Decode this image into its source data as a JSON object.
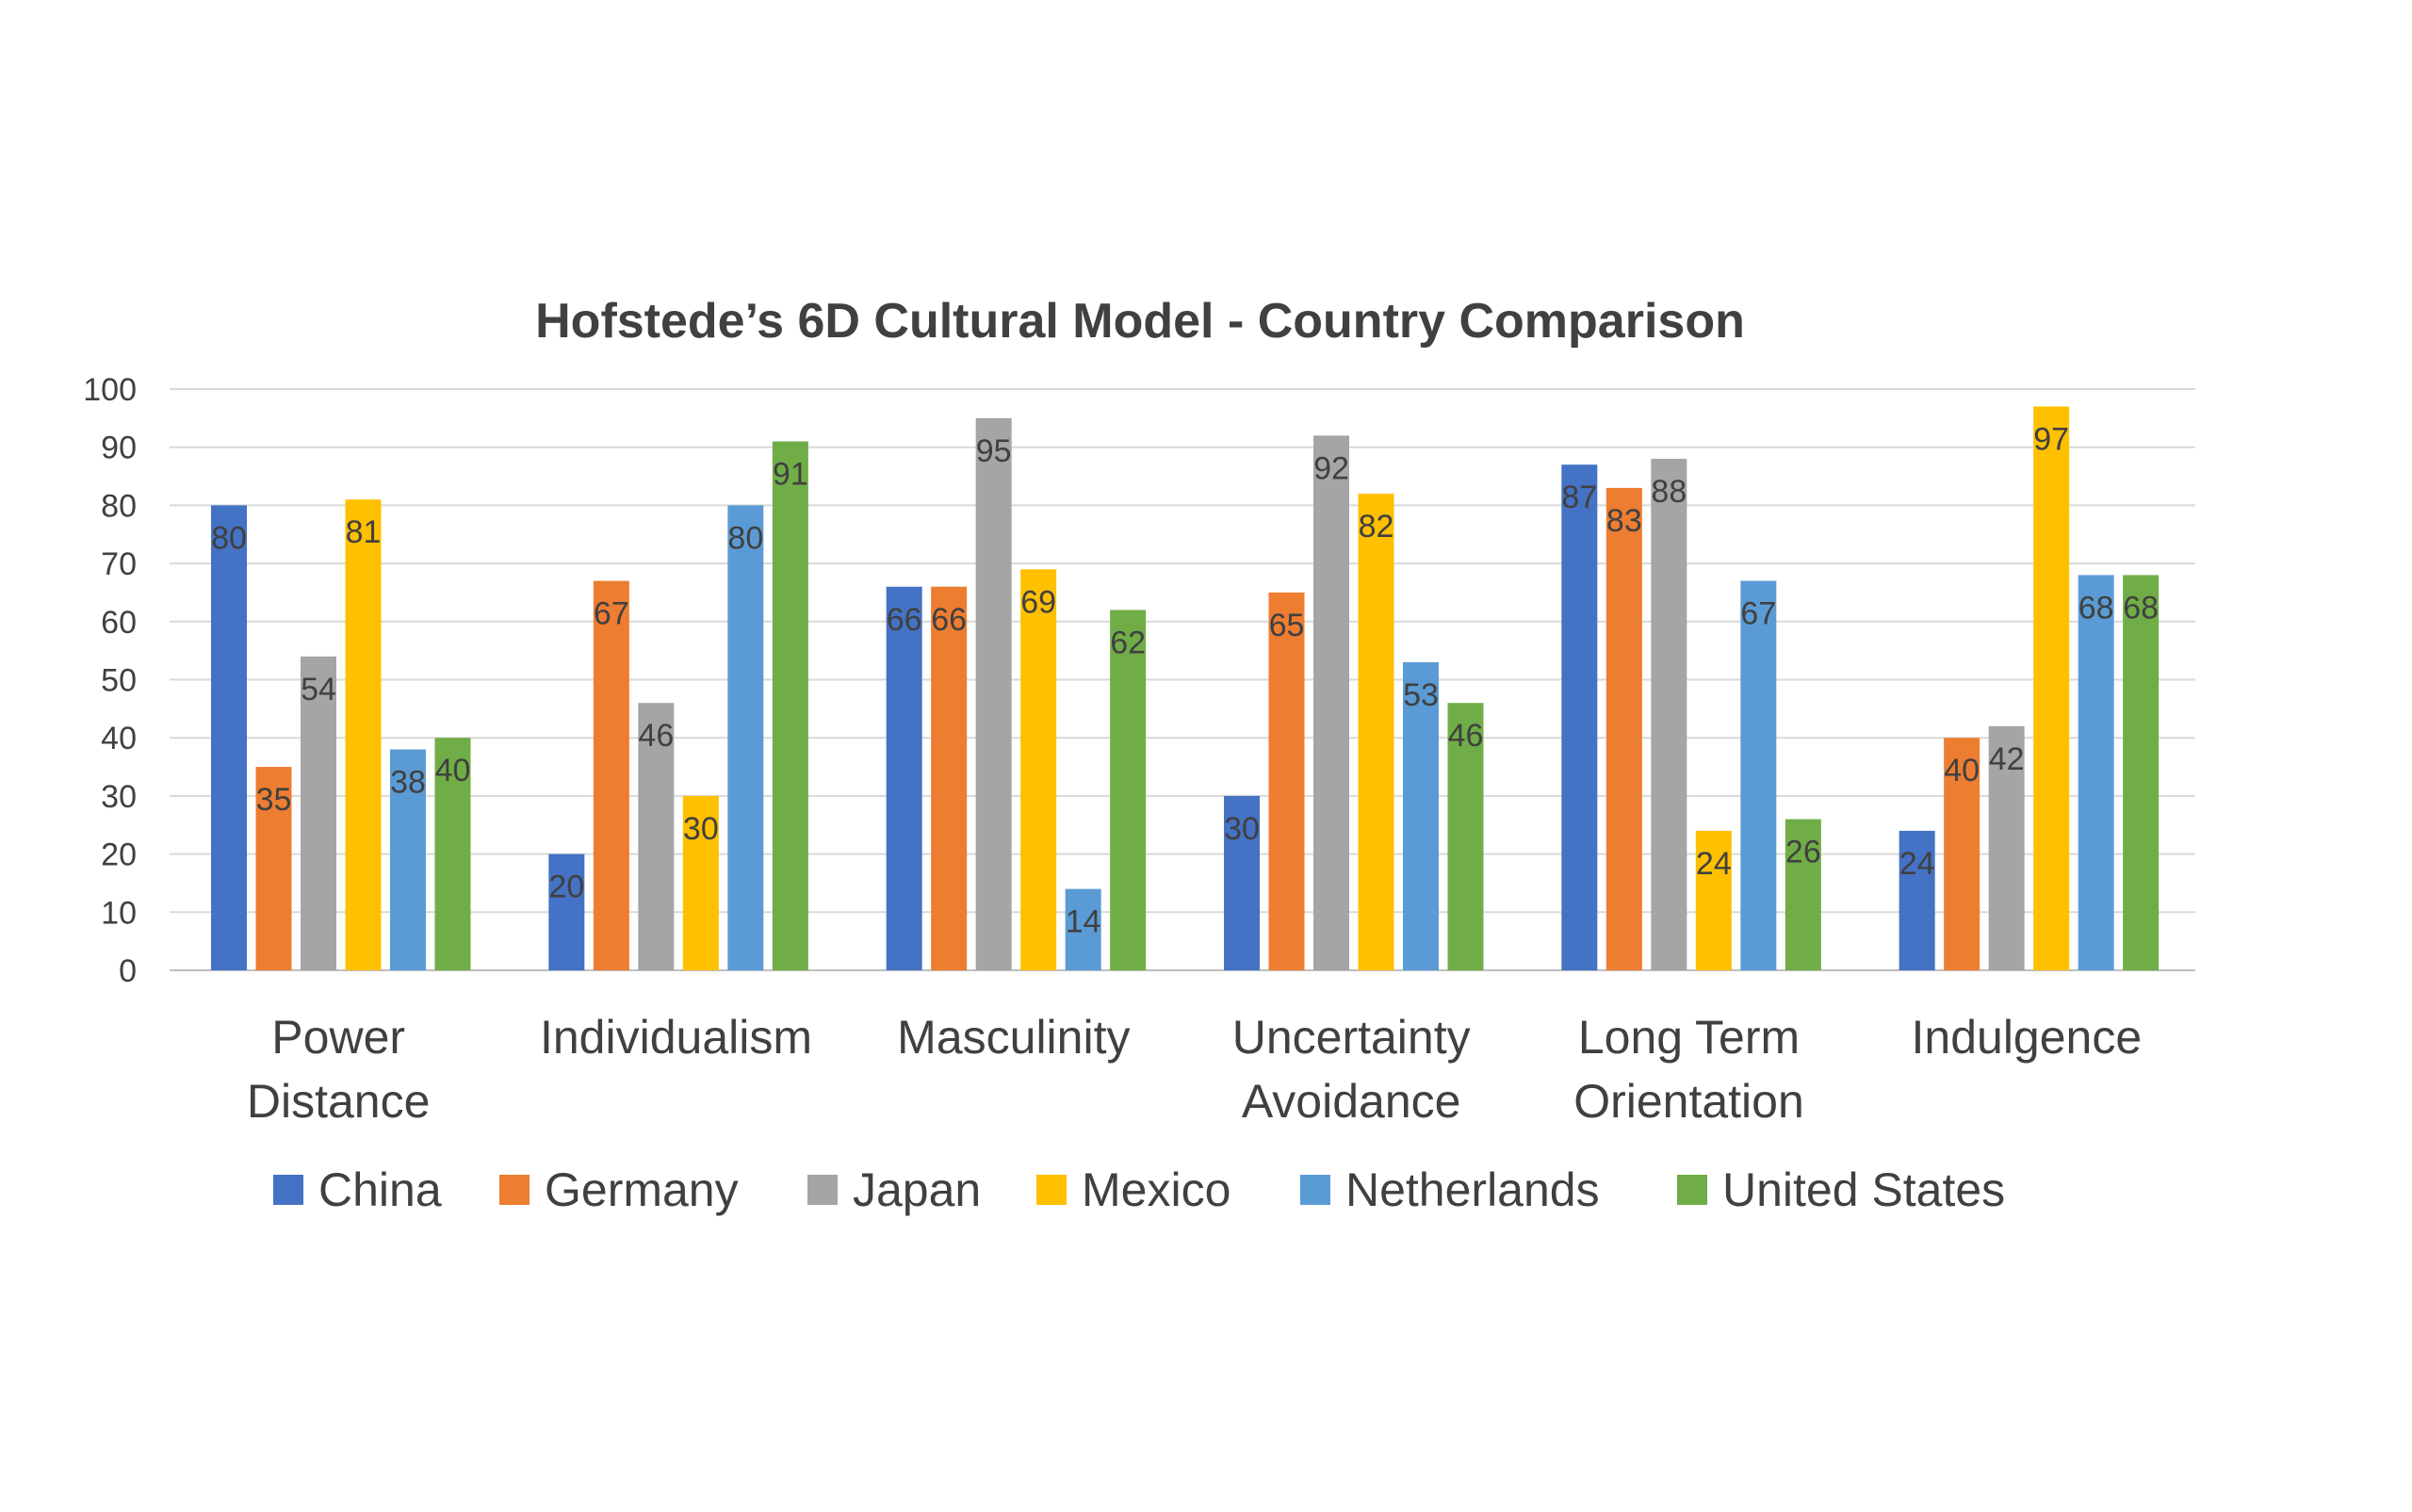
{
  "chart_data": {
    "type": "bar",
    "title": "Hofstede’s 6D Cultural Model - Country Comparison",
    "xlabel": "",
    "ylabel": "",
    "ylim": [
      0,
      100
    ],
    "yticks": [
      0,
      10,
      20,
      30,
      40,
      50,
      60,
      70,
      80,
      90,
      100
    ],
    "grid": true,
    "legend_position": "bottom",
    "categories": [
      [
        "Power",
        "Distance"
      ],
      [
        "Individualism"
      ],
      [
        "Masculinity"
      ],
      [
        "Uncertainty",
        "Avoidance"
      ],
      [
        "Long Term",
        "Orientation"
      ],
      [
        "Indulgence"
      ]
    ],
    "series": [
      {
        "name": "China",
        "color": "#4472C4",
        "values": [
          80,
          20,
          66,
          30,
          87,
          24
        ]
      },
      {
        "name": "Germany",
        "color": "#ED7D31",
        "values": [
          35,
          67,
          66,
          65,
          83,
          40
        ]
      },
      {
        "name": "Japan",
        "color": "#A5A5A5",
        "values": [
          54,
          46,
          95,
          92,
          88,
          42
        ]
      },
      {
        "name": "Mexico",
        "color": "#FFC000",
        "values": [
          81,
          30,
          69,
          82,
          24,
          97
        ]
      },
      {
        "name": "Netherlands",
        "color": "#5B9BD5",
        "values": [
          38,
          80,
          14,
          53,
          67,
          68
        ]
      },
      {
        "name": "United States",
        "color": "#70AD47",
        "values": [
          40,
          91,
          62,
          46,
          26,
          68
        ]
      }
    ]
  }
}
